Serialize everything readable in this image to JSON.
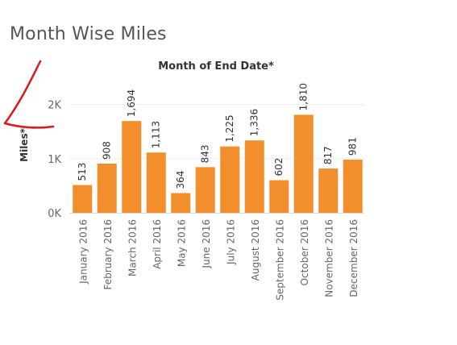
{
  "page_title": "Month Wise Miles",
  "colors": {
    "bar": "#f28e2b",
    "annotation": "#e0161c",
    "gridline": "#ececec",
    "baseline": "#d9d9d9",
    "tick_text": "#666666",
    "axis_title": "#333333"
  },
  "chart_data": {
    "type": "bar",
    "title": "Month of End Date*",
    "ylabel": "Miles*",
    "xlabel": "",
    "ylim": [
      0,
      2500
    ],
    "yticks": [
      {
        "value": 0,
        "label": "0K"
      },
      {
        "value": 1000,
        "label": "1K"
      },
      {
        "value": 2000,
        "label": "2K"
      }
    ],
    "grid": true,
    "categories": [
      "January 2016",
      "February 2016",
      "March 2016",
      "April 2016",
      "May 2016",
      "June 2016",
      "July 2016",
      "August 2016",
      "September 2016",
      "October 2016",
      "November 2016",
      "December 2016"
    ],
    "values": [
      513,
      908,
      1694,
      1113,
      364,
      843,
      1225,
      1336,
      602,
      1810,
      817,
      981
    ],
    "value_labels": [
      "513",
      "908",
      "1,694",
      "1,113",
      "364",
      "843",
      "1,225",
      "1,336",
      "602",
      "1,810",
      "817",
      "981"
    ]
  },
  "annotation": {
    "shape": "hand-drawn red arrow pointing at y-axis title"
  }
}
